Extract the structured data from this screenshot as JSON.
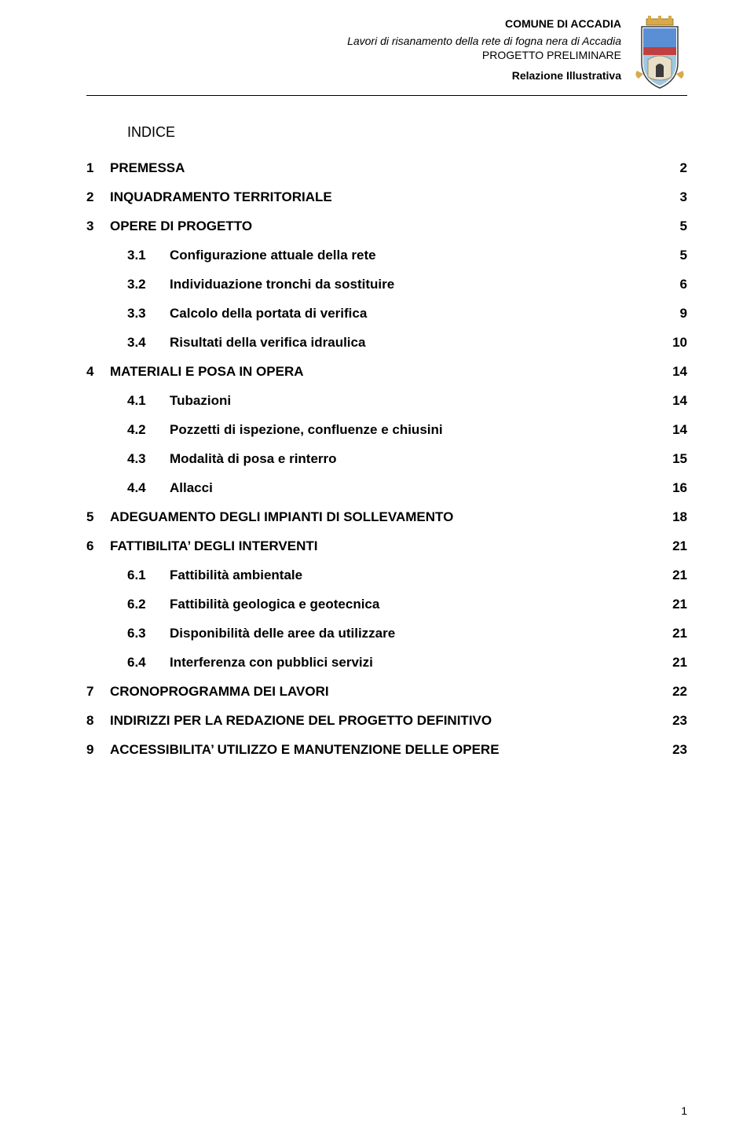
{
  "header": {
    "comune": "COMUNE DI ACCADIA",
    "project_line": "Lavori di risanamento della rete di fogna nera di Accadia",
    "doc_type": "PROGETTO PRELIMINARE",
    "section": "Relazione Illustrativa"
  },
  "crest": {
    "colors": {
      "gold": "#d9a94a",
      "blue_top": "#5a8fd6",
      "red": "#c04040",
      "sky": "#9ec9e2",
      "arch_light": "#e8dfc8",
      "arch_dark": "#8a7c5e"
    }
  },
  "indice_label": "INDICE",
  "toc": [
    {
      "level": 1,
      "num": "1",
      "title": "PREMESSA",
      "page": "2"
    },
    {
      "level": 1,
      "num": "2",
      "title": "INQUADRAMENTO TERRITORIALE",
      "page": "3"
    },
    {
      "level": 1,
      "num": "3",
      "title": "OPERE DI PROGETTO",
      "page": "5"
    },
    {
      "level": 2,
      "num": "3.1",
      "title": "Configurazione attuale della rete",
      "page": "5"
    },
    {
      "level": 2,
      "num": "3.2",
      "title": "Individuazione tronchi da sostituire",
      "page": "6"
    },
    {
      "level": 2,
      "num": "3.3",
      "title": "Calcolo della portata di verifica",
      "page": "9"
    },
    {
      "level": 2,
      "num": "3.4",
      "title": "Risultati della verifica idraulica",
      "page": "10"
    },
    {
      "level": 1,
      "num": "4",
      "title": "MATERIALI E POSA IN OPERA",
      "page": "14"
    },
    {
      "level": 2,
      "num": "4.1",
      "title": "Tubazioni",
      "page": "14"
    },
    {
      "level": 2,
      "num": "4.2",
      "title": "Pozzetti di ispezione, confluenze e chiusini",
      "page": "14"
    },
    {
      "level": 2,
      "num": "4.3",
      "title": "Modalità di posa e rinterro",
      "page": "15"
    },
    {
      "level": 2,
      "num": "4.4",
      "title": "Allacci",
      "page": "16"
    },
    {
      "level": 1,
      "num": "5",
      "title": "ADEGUAMENTO DEGLI IMPIANTI DI SOLLEVAMENTO",
      "page": "18"
    },
    {
      "level": 1,
      "num": "6",
      "title": "FATTIBILITA’ DEGLI INTERVENTI",
      "page": "21"
    },
    {
      "level": 2,
      "num": "6.1",
      "title": "Fattibilità ambientale",
      "page": "21"
    },
    {
      "level": 2,
      "num": "6.2",
      "title": "Fattibilità geologica e geotecnica",
      "page": "21"
    },
    {
      "level": 2,
      "num": "6.3",
      "title": "Disponibilità delle aree da utilizzare",
      "page": "21"
    },
    {
      "level": 2,
      "num": "6.4",
      "title": "Interferenza con pubblici servizi",
      "page": "21"
    },
    {
      "level": 1,
      "num": "7",
      "title": "CRONOPROGRAMMA DEI LAVORI",
      "page": "22"
    },
    {
      "level": 1,
      "num": "8",
      "title": "INDIRIZZI PER LA REDAZIONE DEL PROGETTO DEFINITIVO",
      "page": "23"
    },
    {
      "level": 1,
      "num": "9",
      "title": "ACCESSIBILITA’ UTILIZZO E MANUTENZIONE DELLE OPERE",
      "page": "23"
    }
  ],
  "page_number": "1"
}
